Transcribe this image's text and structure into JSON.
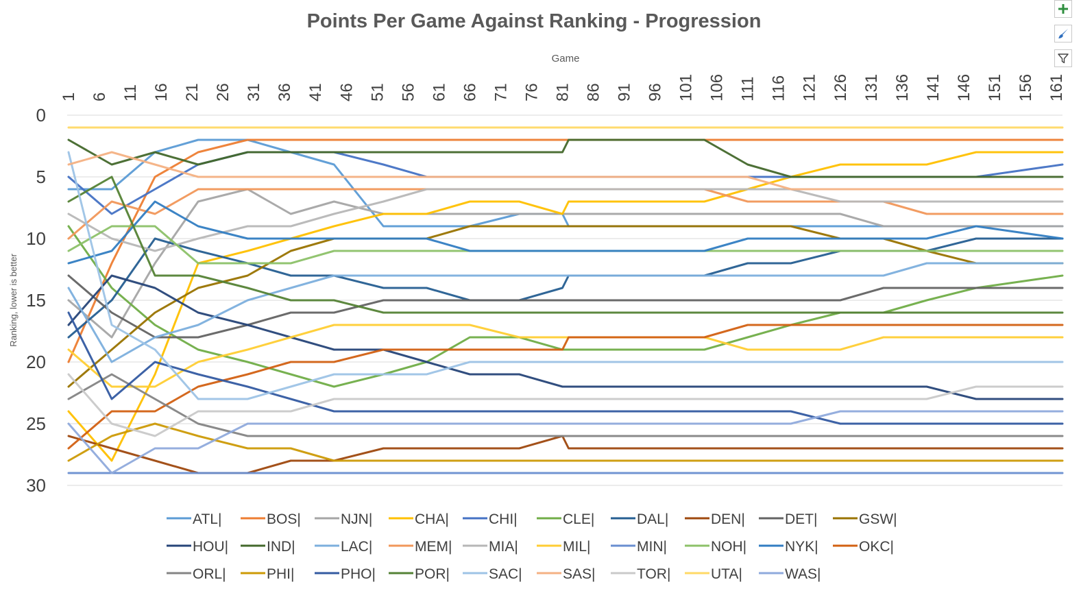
{
  "chart_data": {
    "type": "line",
    "title": "Points Per Game Against Ranking - Progression",
    "xlabel": "Game",
    "ylabel": "Ranking, lower is better",
    "x_axis_position": "top",
    "y_reversed": true,
    "xlim": [
      1,
      162
    ],
    "ylim": [
      0,
      30
    ],
    "x_ticks": [
      "1",
      "6",
      "11",
      "16",
      "21",
      "26",
      "31",
      "36",
      "41",
      "46",
      "51",
      "56",
      "61",
      "66",
      "71",
      "76",
      "81",
      "86",
      "91",
      "96",
      "101",
      "106",
      "111",
      "116",
      "121",
      "126",
      "131",
      "136",
      "141",
      "146",
      "151",
      "156",
      "161"
    ],
    "y_ticks": [
      "0",
      "5",
      "10",
      "15",
      "20",
      "25",
      "30"
    ],
    "grid": "horizontal",
    "legend_position": "bottom",
    "series": [
      {
        "name": "ATL|",
        "color": "#5b9bd5",
        "ranks": [
          6,
          6,
          3,
          2,
          2,
          3,
          4,
          9,
          9,
          9,
          8,
          8,
          9,
          9,
          9,
          9,
          9,
          9,
          9,
          9,
          9,
          9,
          9
        ]
      },
      {
        "name": "BOS|",
        "color": "#ed7d31",
        "ranks": [
          20,
          12,
          5,
          3,
          2,
          2,
          2,
          2,
          2,
          2,
          2,
          2,
          2,
          2,
          2,
          2,
          2,
          2,
          2,
          2,
          2,
          2,
          2
        ]
      },
      {
        "name": "NJN|",
        "color": "#a5a5a5",
        "ranks": [
          15,
          18,
          12,
          7,
          6,
          8,
          7,
          8,
          8,
          8,
          8,
          8,
          8,
          8,
          8,
          8,
          8,
          8,
          8,
          9,
          9,
          9,
          9
        ]
      },
      {
        "name": "CHA|",
        "color": "#ffc000",
        "ranks": [
          24,
          28,
          21,
          12,
          11,
          10,
          9,
          8,
          8,
          7,
          7,
          8,
          7,
          7,
          7,
          7,
          6,
          5,
          4,
          4,
          4,
          3,
          3
        ]
      },
      {
        "name": "CHI|",
        "color": "#4472c4",
        "ranks": [
          5,
          8,
          6,
          4,
          3,
          3,
          3,
          4,
          5,
          5,
          5,
          5,
          5,
          5,
          5,
          5,
          5,
          5,
          5,
          5,
          5,
          5,
          4
        ]
      },
      {
        "name": "CLE|",
        "color": "#70ad47",
        "ranks": [
          9,
          14,
          17,
          19,
          20,
          21,
          22,
          21,
          20,
          18,
          18,
          19,
          19,
          19,
          19,
          19,
          18,
          17,
          16,
          16,
          15,
          14,
          13
        ]
      },
      {
        "name": "DAL|",
        "color": "#255e91",
        "ranks": [
          18,
          15,
          10,
          11,
          12,
          13,
          13,
          14,
          14,
          15,
          15,
          14,
          13,
          13,
          13,
          13,
          12,
          12,
          11,
          11,
          11,
          10,
          10
        ]
      },
      {
        "name": "DEN|",
        "color": "#9e480e",
        "ranks": [
          26,
          27,
          28,
          29,
          29,
          28,
          28,
          27,
          27,
          27,
          27,
          26,
          27,
          27,
          27,
          27,
          27,
          27,
          27,
          27,
          27,
          27,
          27
        ]
      },
      {
        "name": "DET|",
        "color": "#636363",
        "ranks": [
          13,
          16,
          18,
          18,
          17,
          16,
          16,
          15,
          15,
          15,
          15,
          15,
          15,
          15,
          15,
          15,
          15,
          15,
          15,
          14,
          14,
          14,
          14
        ]
      },
      {
        "name": "GSW|",
        "color": "#997300",
        "ranks": [
          22,
          19,
          16,
          14,
          13,
          11,
          10,
          10,
          10,
          9,
          9,
          9,
          9,
          9,
          9,
          9,
          9,
          9,
          10,
          10,
          11,
          12,
          12
        ]
      },
      {
        "name": "HOU|",
        "color": "#264478",
        "ranks": [
          17,
          13,
          14,
          16,
          17,
          18,
          19,
          19,
          20,
          21,
          21,
          22,
          22,
          22,
          22,
          22,
          22,
          22,
          22,
          22,
          22,
          23,
          23
        ]
      },
      {
        "name": "IND|",
        "color": "#43682b",
        "ranks": [
          2,
          4,
          3,
          4,
          3,
          3,
          3,
          3,
          3,
          3,
          3,
          3,
          2,
          2,
          2,
          2,
          4,
          5,
          5,
          5,
          5,
          5,
          5
        ]
      },
      {
        "name": "LAC|",
        "color": "#7cafdd",
        "ranks": [
          14,
          20,
          18,
          17,
          15,
          14,
          13,
          13,
          13,
          13,
          13,
          13,
          13,
          13,
          13,
          13,
          13,
          13,
          13,
          13,
          12,
          12,
          12
        ]
      },
      {
        "name": "MEM|",
        "color": "#f1975a",
        "ranks": [
          10,
          7,
          8,
          6,
          6,
          6,
          6,
          6,
          6,
          6,
          6,
          6,
          6,
          6,
          6,
          6,
          7,
          7,
          7,
          7,
          8,
          8,
          8
        ]
      },
      {
        "name": "MIA|",
        "color": "#b7b7b7",
        "ranks": [
          8,
          10,
          11,
          10,
          9,
          9,
          8,
          7,
          6,
          6,
          6,
          6,
          6,
          6,
          6,
          6,
          6,
          6,
          7,
          7,
          7,
          7,
          7
        ]
      },
      {
        "name": "MIL|",
        "color": "#ffcd33",
        "ranks": [
          19,
          22,
          22,
          20,
          19,
          18,
          17,
          17,
          17,
          17,
          18,
          18,
          18,
          18,
          18,
          18,
          19,
          19,
          19,
          18,
          18,
          18,
          18
        ]
      },
      {
        "name": "MIN|",
        "color": "#698ed0",
        "ranks": [
          29,
          29,
          29,
          29,
          29,
          29,
          29,
          29,
          29,
          29,
          29,
          29,
          29,
          29,
          29,
          29,
          29,
          29,
          29,
          29,
          29,
          29,
          29
        ]
      },
      {
        "name": "NOH|",
        "color": "#8cc168",
        "ranks": [
          11,
          9,
          9,
          12,
          12,
          12,
          11,
          11,
          11,
          11,
          11,
          11,
          11,
          11,
          11,
          11,
          11,
          11,
          11,
          11,
          11,
          11,
          11
        ]
      },
      {
        "name": "NYK|",
        "color": "#327dc2",
        "ranks": [
          12,
          11,
          7,
          9,
          10,
          10,
          10,
          10,
          10,
          11,
          11,
          11,
          11,
          11,
          11,
          11,
          10,
          10,
          10,
          10,
          10,
          9,
          10
        ]
      },
      {
        "name": "OKC|",
        "color": "#d26012",
        "ranks": [
          27,
          24,
          24,
          22,
          21,
          20,
          20,
          19,
          19,
          19,
          19,
          19,
          18,
          18,
          18,
          18,
          17,
          17,
          17,
          17,
          17,
          17,
          17
        ]
      },
      {
        "name": "ORL|",
        "color": "#848484",
        "ranks": [
          23,
          21,
          23,
          25,
          26,
          26,
          26,
          26,
          26,
          26,
          26,
          26,
          26,
          26,
          26,
          26,
          26,
          26,
          26,
          26,
          26,
          26,
          26
        ]
      },
      {
        "name": "PHI|",
        "color": "#cc9a06",
        "ranks": [
          28,
          26,
          25,
          26,
          27,
          27,
          28,
          28,
          28,
          28,
          28,
          28,
          28,
          28,
          28,
          28,
          28,
          28,
          28,
          28,
          28,
          28,
          28
        ]
      },
      {
        "name": "PHO|",
        "color": "#335aa1",
        "ranks": [
          16,
          23,
          20,
          21,
          22,
          23,
          24,
          24,
          24,
          24,
          24,
          24,
          24,
          24,
          24,
          24,
          24,
          24,
          25,
          25,
          25,
          25,
          25
        ]
      },
      {
        "name": "POR|",
        "color": "#548235",
        "ranks": [
          7,
          5,
          13,
          13,
          14,
          15,
          15,
          16,
          16,
          16,
          16,
          16,
          16,
          16,
          16,
          16,
          16,
          16,
          16,
          16,
          16,
          16,
          16
        ]
      },
      {
        "name": "SAC|",
        "color": "#9dc3e6",
        "ranks": [
          3,
          17,
          19,
          23,
          23,
          22,
          21,
          21,
          21,
          20,
          20,
          20,
          20,
          20,
          20,
          20,
          20,
          20,
          20,
          20,
          20,
          20,
          20
        ]
      },
      {
        "name": "SAS|",
        "color": "#f4b183",
        "ranks": [
          4,
          3,
          4,
          5,
          5,
          5,
          5,
          5,
          5,
          5,
          5,
          5,
          5,
          5,
          5,
          5,
          5,
          6,
          6,
          6,
          6,
          6,
          6
        ]
      },
      {
        "name": "TOR|",
        "color": "#c9c9c9",
        "ranks": [
          21,
          25,
          26,
          24,
          24,
          24,
          23,
          23,
          23,
          23,
          23,
          23,
          23,
          23,
          23,
          23,
          23,
          23,
          23,
          23,
          23,
          22,
          22
        ]
      },
      {
        "name": "UTA|",
        "color": "#ffd966",
        "ranks": [
          1,
          1,
          1,
          1,
          1,
          1,
          1,
          1,
          1,
          1,
          1,
          1,
          1,
          1,
          1,
          1,
          1,
          1,
          1,
          1,
          1,
          1,
          1
        ]
      },
      {
        "name": "WAS|",
        "color": "#8faadc",
        "ranks": [
          25,
          29,
          27,
          27,
          25,
          25,
          25,
          25,
          25,
          25,
          25,
          25,
          25,
          25,
          25,
          25,
          25,
          25,
          24,
          24,
          24,
          24,
          24
        ]
      }
    ],
    "sample_games": [
      1,
      8,
      15,
      22,
      30,
      37,
      44,
      52,
      59,
      66,
      74,
      81,
      82,
      89,
      96,
      104,
      111,
      118,
      126,
      133,
      140,
      148,
      162
    ]
  },
  "controls": {
    "add_element": "+",
    "style": "brush",
    "filter": "funnel"
  }
}
